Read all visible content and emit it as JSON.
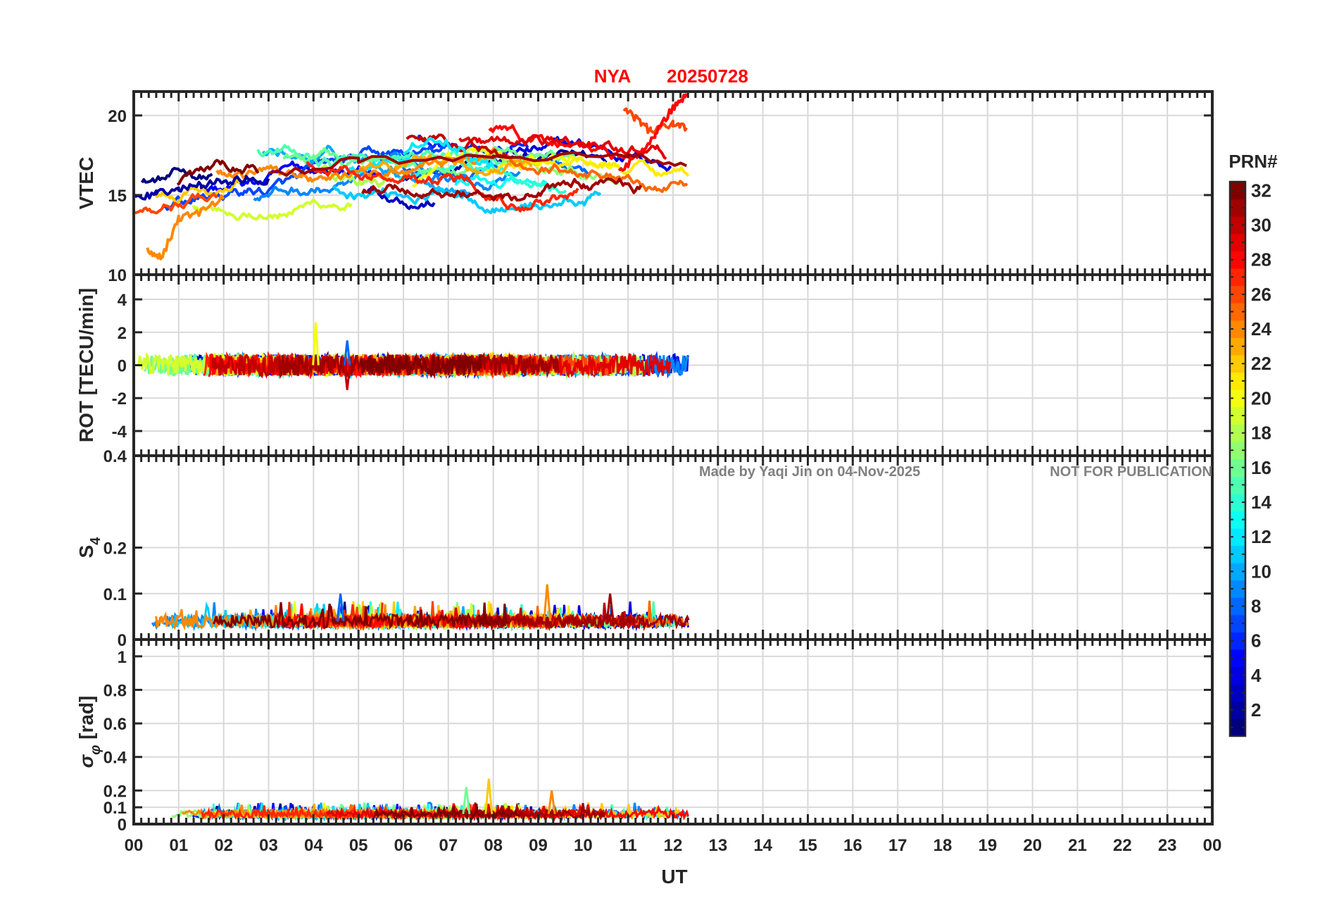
{
  "figure": {
    "title_station": "NYA",
    "title_date": "20250728",
    "watermark_left": "Made by Yaqi Jin on 04-Nov-2025",
    "watermark_right": "NOT FOR PUBLICATION",
    "xlabel": "UT",
    "colors": {
      "title": "#ff0000",
      "watermark": "#808080",
      "grid": "#d9d9d9",
      "axis": "#262626"
    }
  },
  "chart_data": [
    {
      "type": "line",
      "panel": "vtec",
      "ylabel": "VTEC",
      "ylim": [
        10,
        21.5
      ],
      "yticks": [
        10,
        15,
        20
      ],
      "xlim": [
        0,
        24
      ],
      "data_end_hour": 12.35,
      "series_count": 32,
      "series": [
        {
          "name": "PRN 2",
          "x": [
            0.0,
            0.5,
            1.0,
            1.5,
            2.0,
            2.5,
            3.0
          ],
          "values": [
            14.8,
            15.1,
            15.4,
            15.6,
            15.9,
            16.0,
            15.8
          ]
        },
        {
          "name": "PRN 12",
          "x": [
            6.0,
            6.5,
            7.0,
            7.5,
            8.0
          ],
          "values": [
            17.8,
            18.4,
            18.2,
            17.4,
            16.8
          ]
        },
        {
          "name": "PRN 24",
          "x": [
            0.3,
            0.6,
            1.0,
            1.5,
            2.0
          ],
          "values": [
            11.6,
            11.0,
            13.5,
            14.0,
            14.8
          ]
        },
        {
          "name": "PRN 26",
          "x": [
            10.9,
            11.2,
            11.5,
            12.0,
            12.3
          ],
          "values": [
            20.3,
            19.8,
            19.0,
            19.5,
            19.3
          ]
        },
        {
          "name": "PRN 28",
          "x": [
            10.8,
            11.2,
            11.6,
            12.0,
            12.3
          ],
          "values": [
            16.5,
            17.5,
            18.8,
            20.5,
            21.2
          ]
        },
        {
          "name": "PRN 31",
          "x": [
            3.0,
            5.0,
            8.0,
            11.0,
            12.3
          ],
          "values": [
            16.2,
            17.2,
            17.3,
            17.6,
            16.7
          ]
        }
      ]
    },
    {
      "type": "line",
      "panel": "rot",
      "ylabel": "ROT [TECU/min]",
      "ylim": [
        -5.5,
        5.5
      ],
      "yticks": [
        -4,
        -2,
        0,
        2,
        4
      ],
      "xlim": [
        0,
        24
      ],
      "data_end_hour": 12.35,
      "peaks": [
        {
          "name": "PRN 20",
          "x": 4.05,
          "value": 2.6
        },
        {
          "name": "PRN 8",
          "x": 4.75,
          "value": 1.5
        },
        {
          "name": "PRN 30",
          "x": 4.75,
          "value": -1.5
        }
      ]
    },
    {
      "type": "line",
      "panel": "s4",
      "ylabel": "S4",
      "ylabel_main": "S",
      "ylabel_sub": "4",
      "ylim": [
        0,
        0.4
      ],
      "yticks": [
        0,
        0.1,
        0.2,
        0.4
      ],
      "xlim": [
        0,
        24
      ],
      "data_end_hour": 12.35,
      "baseline": 0.04,
      "peaks": [
        {
          "name": "PRN 24",
          "x": 9.2,
          "value": 0.12
        },
        {
          "name": "PRN 31",
          "x": 10.6,
          "value": 0.1
        },
        {
          "name": "PRN 8",
          "x": 4.6,
          "value": 0.1
        }
      ]
    },
    {
      "type": "line",
      "panel": "sigma_phi",
      "ylabel": "σφ [rad]",
      "ylabel_main": "σ",
      "ylabel_sub": "φ",
      "ylabel_unit": " [rad]",
      "ylim": [
        0,
        1.1
      ],
      "yticks": [
        0,
        0.1,
        0.2,
        0.4,
        0.6,
        0.8,
        1
      ],
      "xlim": [
        0,
        24
      ],
      "data_end_hour": 12.35,
      "baseline": 0.06,
      "peaks": [
        {
          "name": "PRN 22",
          "x": 7.9,
          "value": 0.27
        },
        {
          "name": "PRN 24",
          "x": 9.3,
          "value": 0.2
        },
        {
          "name": "PRN 16",
          "x": 7.4,
          "value": 0.22
        }
      ]
    }
  ],
  "x_axis": {
    "tick_labels": [
      "00",
      "01",
      "02",
      "03",
      "04",
      "05",
      "06",
      "07",
      "08",
      "09",
      "10",
      "11",
      "12",
      "13",
      "14",
      "15",
      "16",
      "17",
      "18",
      "19",
      "20",
      "21",
      "22",
      "23",
      "00"
    ]
  },
  "colorbar": {
    "title": "PRN#",
    "range": [
      1,
      32
    ],
    "tick_labels": [
      "2",
      "4",
      "6",
      "8",
      "10",
      "12",
      "14",
      "16",
      "18",
      "20",
      "22",
      "24",
      "26",
      "28",
      "30",
      "32"
    ]
  }
}
